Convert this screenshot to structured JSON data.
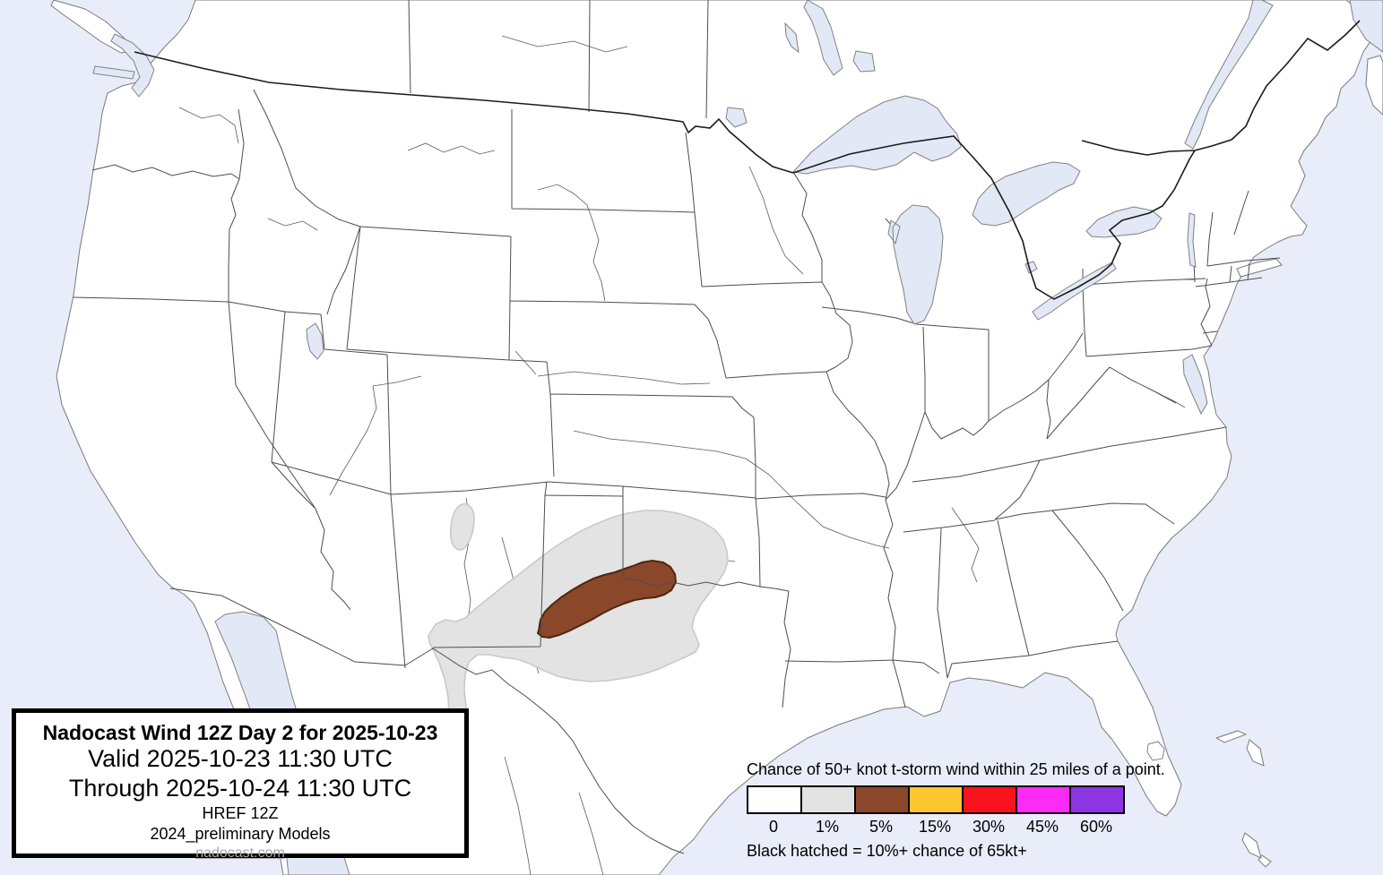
{
  "title_box": {
    "heading": "Nadocast Wind 12Z Day 2 for 2025-10-23",
    "valid": "Valid 2025-10-23 11:30 UTC",
    "through": "Through 2025-10-24 11:30 UTC",
    "model": "HREF 12Z",
    "models_note": "2024_preliminary Models",
    "site": "nadocast.com"
  },
  "legend": {
    "heading": "Chance of 50+ knot t-storm wind within 25 miles of a point.",
    "bins": [
      {
        "label": "0",
        "color": "#ffffff"
      },
      {
        "label": "1%",
        "color": "#e3e3e3"
      },
      {
        "label": "5%",
        "color": "#8a4729"
      },
      {
        "label": "15%",
        "color": "#ffc72f"
      },
      {
        "label": "30%",
        "color": "#fa121c"
      },
      {
        "label": "45%",
        "color": "#fd2af8"
      },
      {
        "label": "60%",
        "color": "#8c35e3"
      }
    ],
    "note": "Black hatched = 10%+ chance of 65kt+"
  },
  "map": {
    "region": "Continental United States with southern Canada and northern Mexico",
    "colors": {
      "water": "#e9edf9",
      "lake": "#e2e8f6",
      "land": "#ffffff",
      "state_line": "#4d4d4d",
      "intl_border": "#1b1b1b",
      "risk_1pct_edge": "#c9c9c9",
      "risk_5pct_edge": "#4f2610"
    },
    "risk_areas": [
      {
        "level": "1%",
        "location": "Eastern New Mexico through the Texas Panhandle, northwest Texas and western Oklahoma"
      },
      {
        "level": "1%",
        "location": "Small spot in northeastern New Mexico"
      },
      {
        "level": "5%",
        "location": "Eastern Texas Panhandle / northwest Texas into southwestern Oklahoma along the Red River"
      }
    ]
  }
}
